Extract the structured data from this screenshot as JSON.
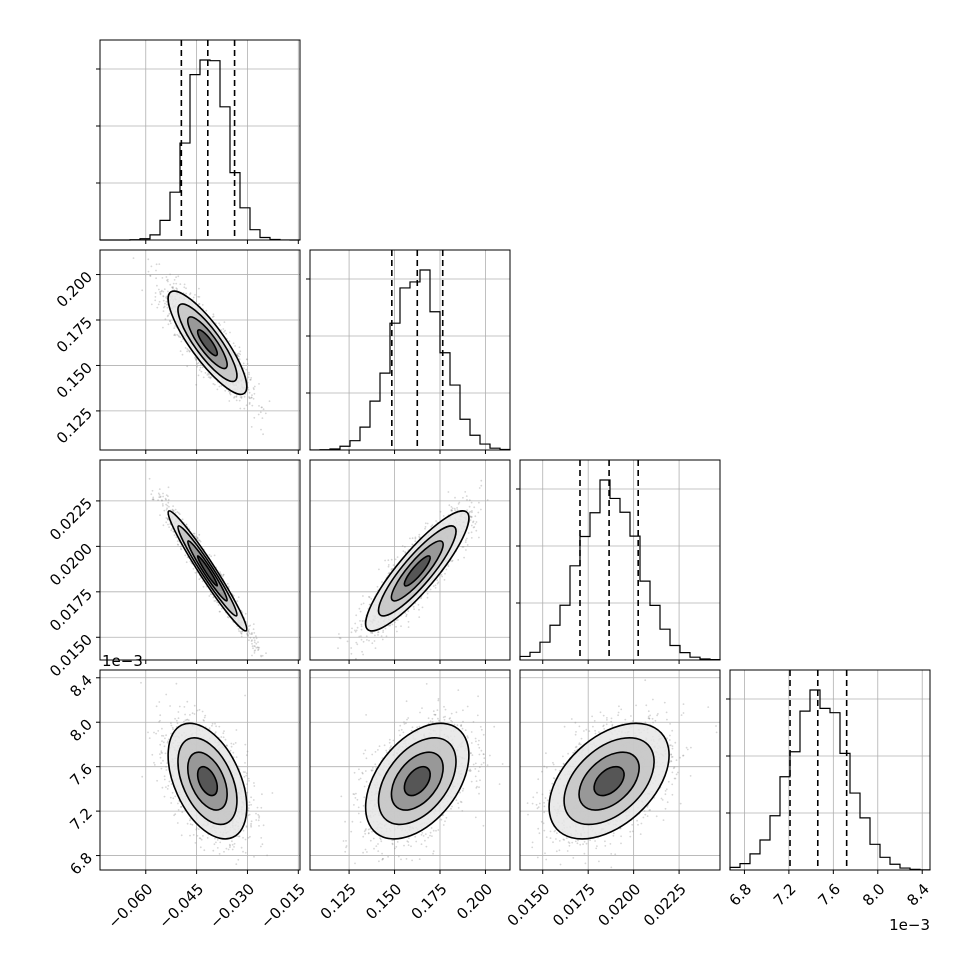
{
  "chart_data": {
    "type": "corner",
    "title": "",
    "grid": true,
    "parameters": [
      {
        "range": [
          -0.0735,
          -0.0145
        ],
        "ticks": [
          -0.06,
          -0.045,
          -0.03,
          -0.015
        ],
        "tick_labels": [
          "−0.060",
          "−0.045",
          "−0.030",
          "−0.015"
        ],
        "offset": "",
        "mean": -0.0418,
        "sd": 0.0058,
        "q16": -0.0495,
        "q50": -0.0417,
        "q84": -0.0338
      },
      {
        "range": [
          0.1035,
          0.2135
        ],
        "ticks": [
          0.125,
          0.15,
          0.175,
          0.2
        ],
        "tick_labels": [
          "0.125",
          "0.150",
          "0.175",
          "0.200"
        ],
        "offset": "",
        "mean": 0.1625,
        "sd": 0.0142,
        "q16": 0.1485,
        "q50": 0.1625,
        "q84": 0.1765
      },
      {
        "range": [
          0.01375,
          0.02475
        ],
        "ticks": [
          0.015,
          0.0175,
          0.02,
          0.0225
        ],
        "tick_labels": [
          "0.0150",
          "0.0175",
          "0.0200",
          "0.0225"
        ],
        "offset": "",
        "mean": 0.01865,
        "sd": 0.00165,
        "q16": 0.01705,
        "q50": 0.01865,
        "q84": 0.02025
      },
      {
        "range": [
          6.67,
          8.47
        ],
        "ticks": [
          6.8,
          7.2,
          7.6,
          8.0,
          8.4
        ],
        "tick_labels": [
          "6.8",
          "7.2",
          "7.6",
          "8.0",
          "8.4"
        ],
        "offset": "1e−3",
        "mean": 7.47,
        "sd": 0.26,
        "q16": 7.21,
        "q50": 7.46,
        "q84": 7.72
      }
    ],
    "correlations": [
      [
        1,
        -0.85,
        -0.97,
        -0.45
      ],
      [
        -0.85,
        1,
        0.88,
        0.45
      ],
      [
        -0.97,
        0.88,
        1,
        0.45
      ],
      [
        -0.45,
        0.45,
        0.45,
        1
      ]
    ],
    "hist_bins": 20,
    "contour_levels_sigma": [
      0.5,
      1.0,
      1.5,
      2.0
    ],
    "diag_ytick_fractions": [
      0.3,
      0.6,
      0.9
    ],
    "points_per_panel": 1800
  }
}
